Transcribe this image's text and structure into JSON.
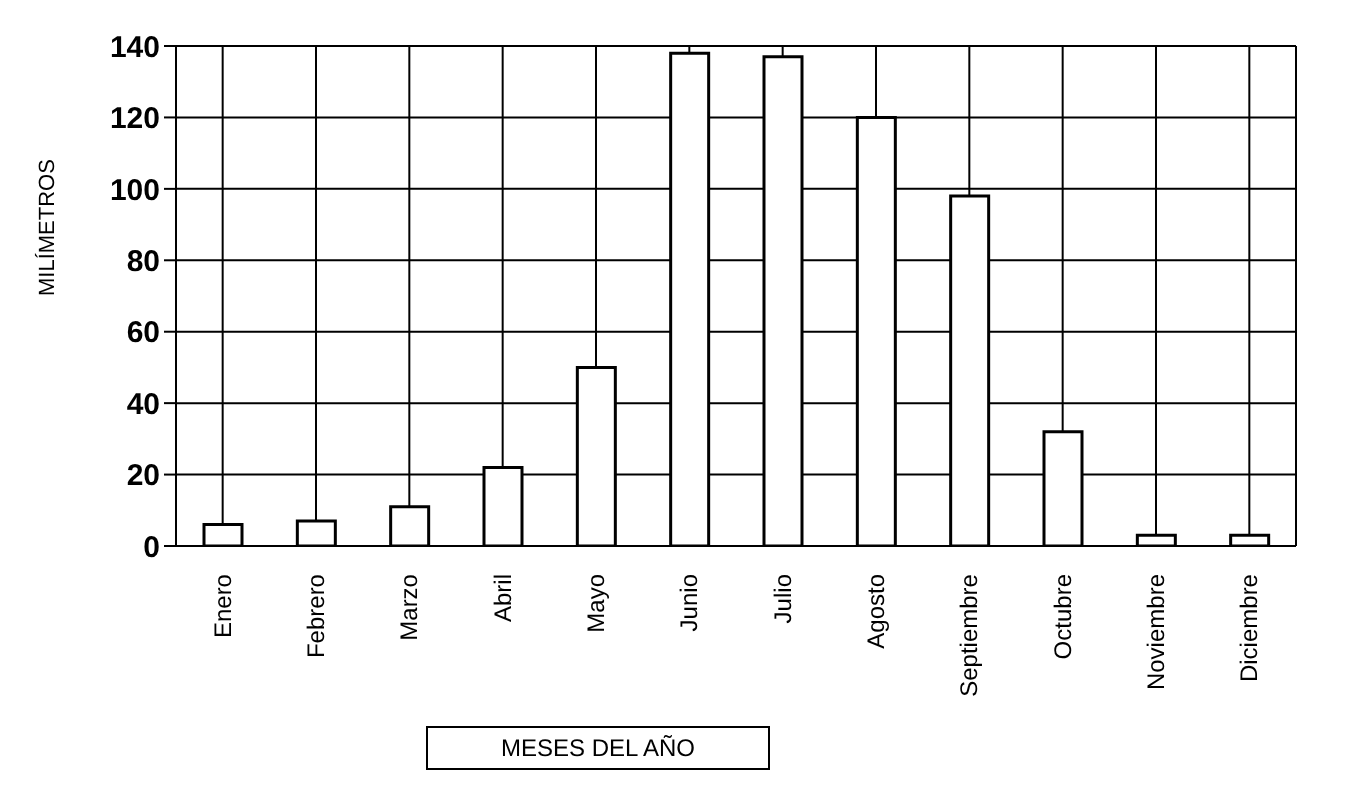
{
  "chart_data": {
    "type": "bar",
    "xlabel": "MESES DEL AÑO",
    "ylabel": "MILÍMETROS",
    "categories": [
      "Enero",
      "Febrero",
      "Marzo",
      "Abril",
      "Mayo",
      "Junio",
      "Julio",
      "Agosto",
      "Septiembre",
      "Octubre",
      "Noviembre",
      "Diciembre"
    ],
    "values": [
      6,
      7,
      11,
      22,
      50,
      138,
      137,
      120,
      98,
      32,
      3,
      3
    ],
    "color": "#ffffff",
    "ylim": [
      0,
      140
    ],
    "yticks": [
      0,
      20,
      40,
      60,
      80,
      100,
      120,
      140
    ],
    "grid": true
  }
}
